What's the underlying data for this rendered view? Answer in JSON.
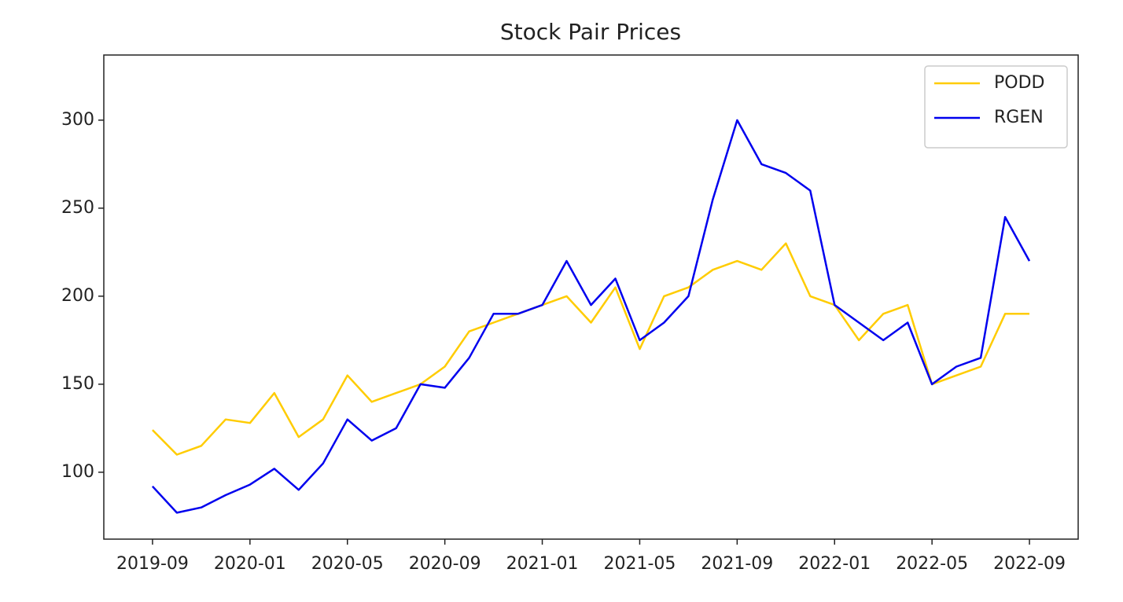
{
  "chart_data": {
    "type": "line",
    "title": "Stock Pair Prices",
    "x": [
      "2019-09",
      "2019-10",
      "2019-11",
      "2019-12",
      "2020-01",
      "2020-02",
      "2020-03",
      "2020-04",
      "2020-05",
      "2020-06",
      "2020-07",
      "2020-08",
      "2020-09",
      "2020-10",
      "2020-11",
      "2020-12",
      "2021-01",
      "2021-02",
      "2021-03",
      "2021-04",
      "2021-05",
      "2021-06",
      "2021-07",
      "2021-08",
      "2021-09",
      "2021-10",
      "2021-11",
      "2021-12",
      "2022-01",
      "2022-02",
      "2022-03",
      "2022-04",
      "2022-05",
      "2022-06",
      "2022-07",
      "2022-08",
      "2022-09"
    ],
    "series": [
      {
        "name": "PODD",
        "color": "#ffcc00",
        "values": [
          124,
          110,
          115,
          130,
          128,
          145,
          120,
          130,
          155,
          140,
          145,
          150,
          160,
          180,
          185,
          190,
          195,
          200,
          185,
          205,
          170,
          200,
          205,
          215,
          220,
          215,
          230,
          200,
          195,
          175,
          190,
          195,
          150,
          155,
          160,
          190,
          190
        ]
      },
      {
        "name": "RGEN",
        "color": "#0000ee",
        "values": [
          92,
          77,
          80,
          87,
          93,
          102,
          90,
          105,
          130,
          118,
          125,
          150,
          148,
          165,
          190,
          190,
          195,
          220,
          195,
          210,
          175,
          185,
          200,
          255,
          300,
          275,
          270,
          260,
          195,
          185,
          175,
          185,
          150,
          160,
          165,
          245,
          220
        ]
      }
    ],
    "xlim": [
      "2019-07",
      "2022-11"
    ],
    "xticks": [
      "2019-09",
      "2020-01",
      "2020-05",
      "2020-09",
      "2021-01",
      "2021-05",
      "2021-09",
      "2022-01",
      "2022-05",
      "2022-09"
    ],
    "ylim": [
      62,
      337
    ],
    "yticks": [
      100,
      150,
      200,
      250,
      300
    ],
    "legend": "upper-right"
  }
}
